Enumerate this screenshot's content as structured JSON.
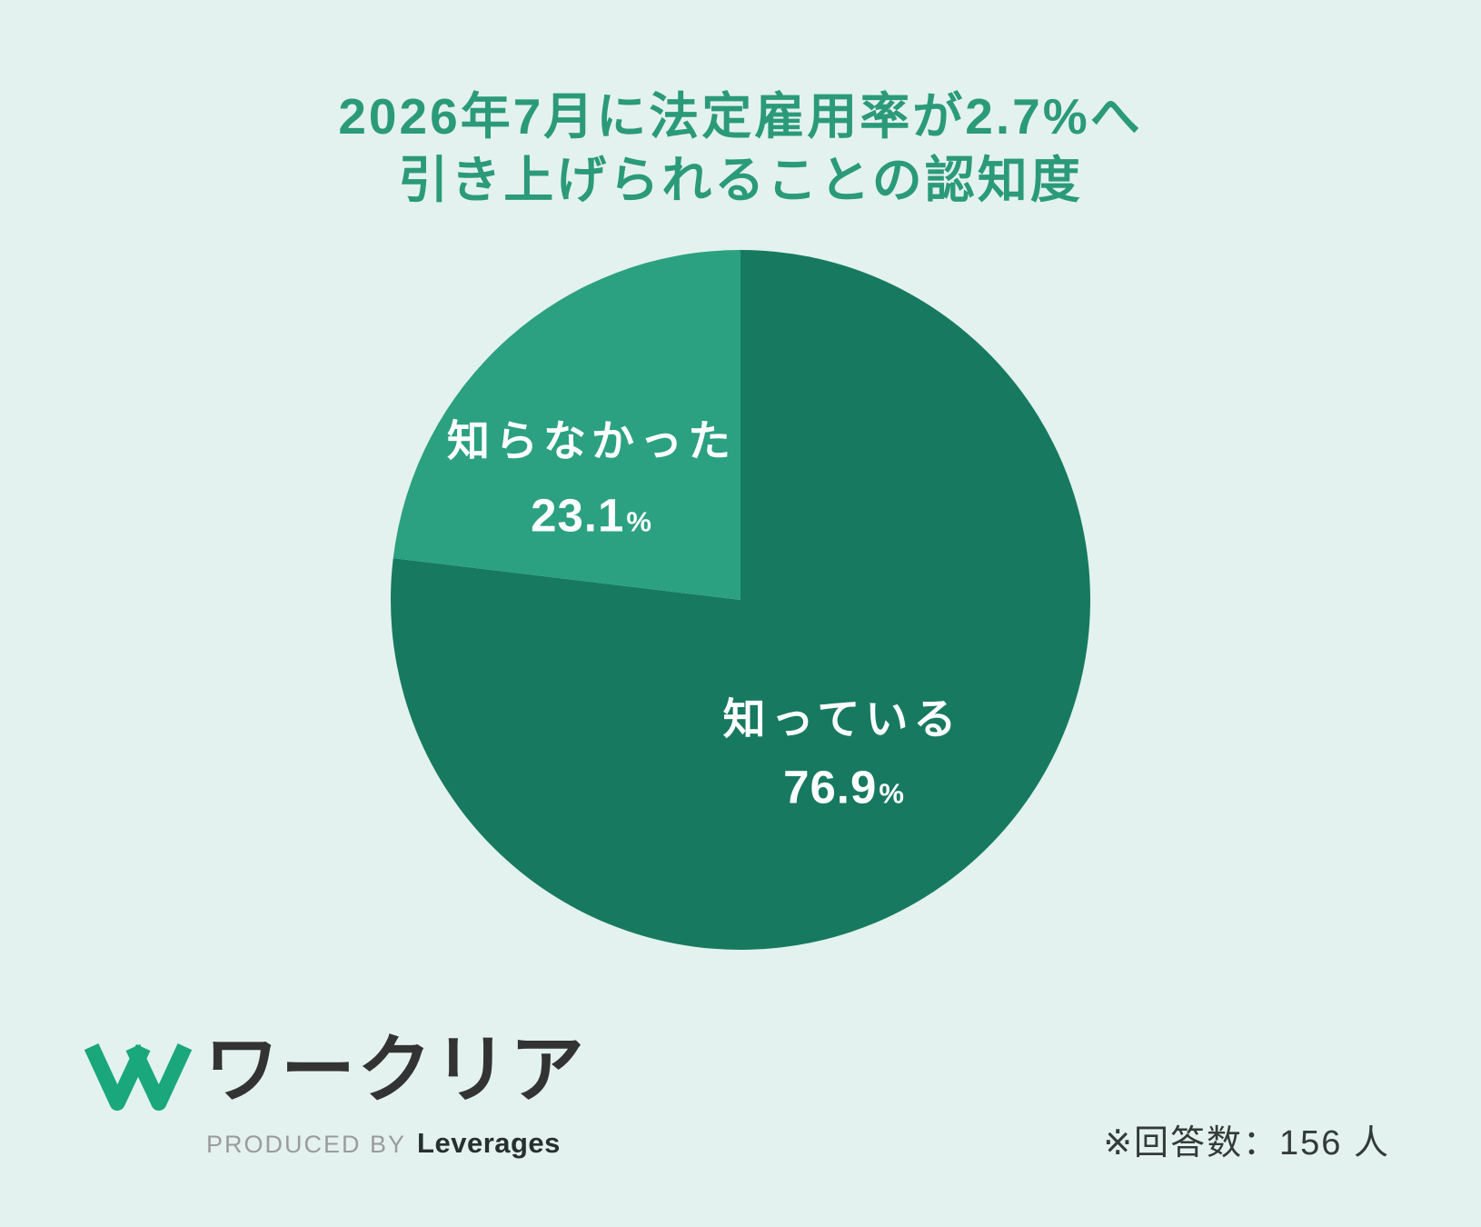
{
  "title": {
    "line1": "2026年7月に法定雇用率が2.7%へ",
    "line2": "引き上げられることの認知度"
  },
  "chart_data": {
    "type": "pie",
    "title": "2026年7月に法定雇用率が2.7%へ引き上げられることの認知度",
    "start_angle_deg": 0,
    "direction": "clockwise",
    "label_position": "inside",
    "label_color": "#ffffff",
    "slices": [
      {
        "label": "知っている",
        "value": 76.9,
        "unit": "%",
        "color": "#177a60"
      },
      {
        "label": "知らなかった",
        "value": 23.1,
        "unit": "%",
        "color": "#2ba181"
      }
    ],
    "respondents_note": "※回答数：156 人"
  },
  "footer": {
    "brand_name": "ワークリア",
    "produced_by": "PRODUCED BY",
    "producer": "Leverages",
    "note": "※回答数：156 人"
  },
  "colors": {
    "background": "#e3f2ee",
    "title_text": "#2b9a79",
    "slice_known": "#177a60",
    "slice_unknown": "#2ba181",
    "slice_label_text": "#ffffff",
    "brand_green": "#1aa77c",
    "brand_text": "#333333",
    "produced_by_gray": "#9b9b9b",
    "producer_dark": "#26302e",
    "note_text": "#333b38"
  }
}
